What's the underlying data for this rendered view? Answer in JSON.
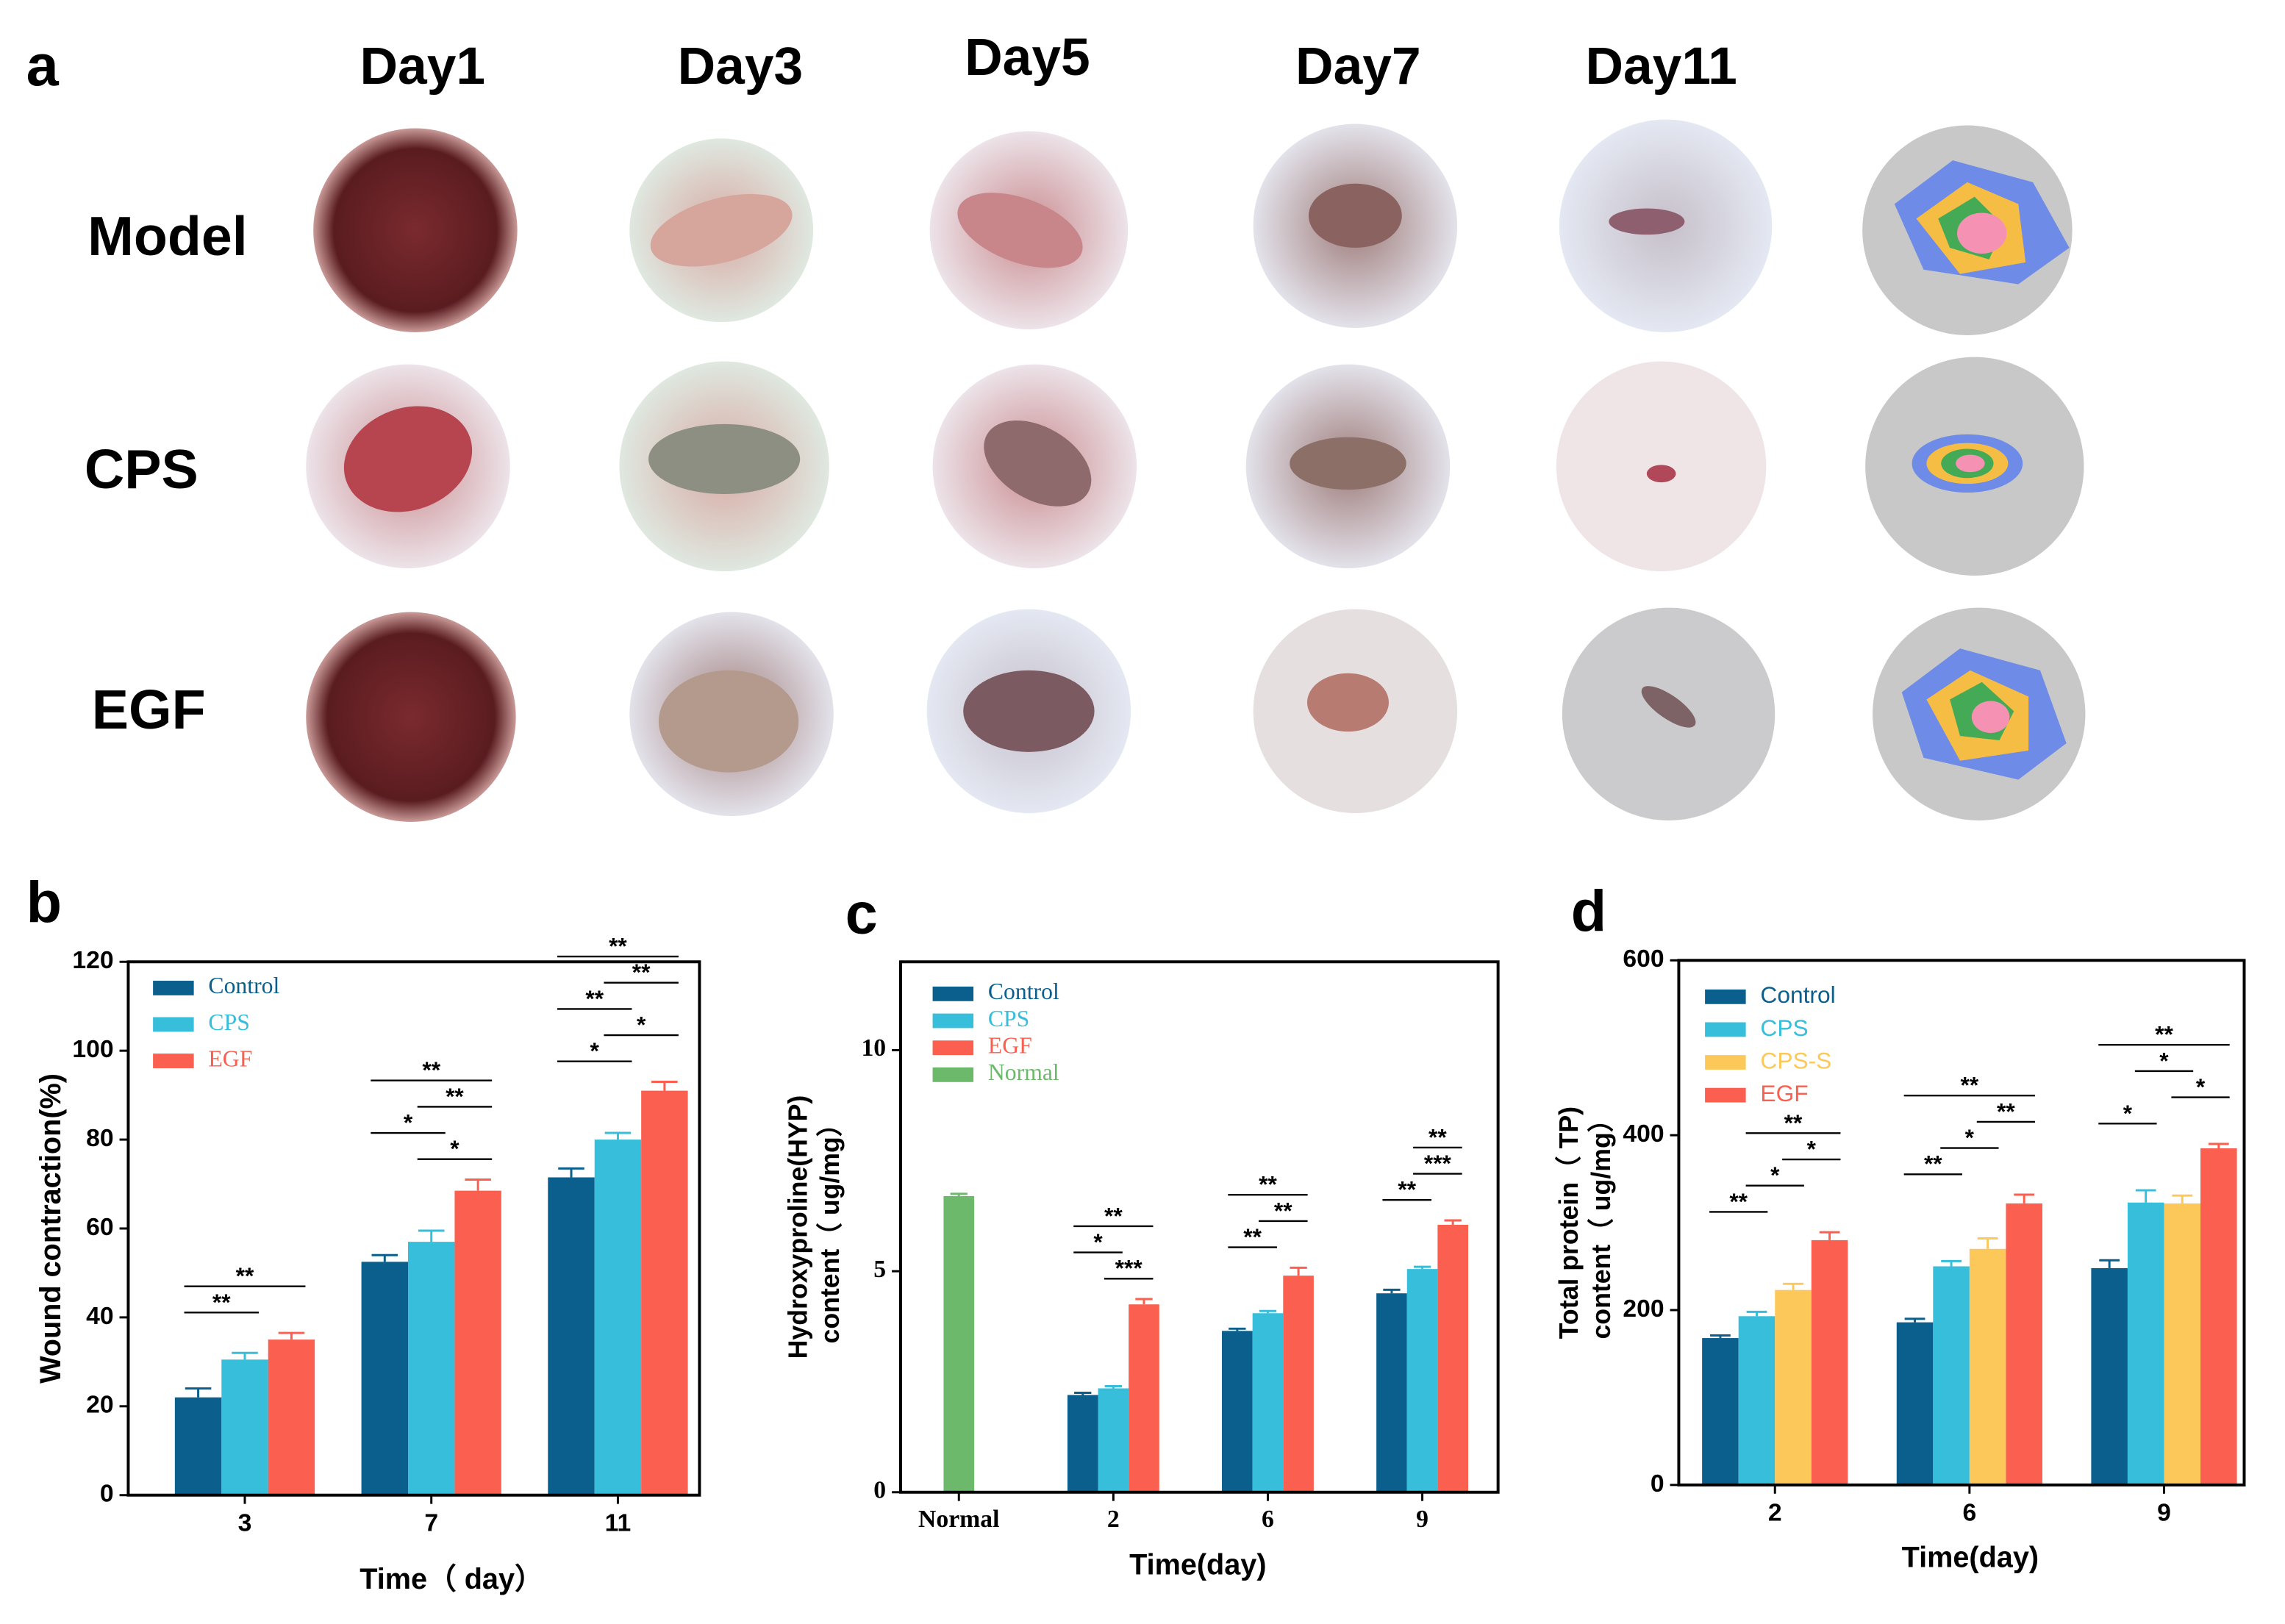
{
  "panel_a": {
    "letter": "a",
    "headers": [
      "Day1",
      "Day3",
      "Day5",
      "Day7",
      "Day11"
    ],
    "rows": [
      "Model",
      "CPS",
      "EGF"
    ]
  },
  "chart_data": [
    {
      "type": "bar",
      "letter": "b",
      "ylabel": "Wound contraction(%)",
      "xlabel": "Time（ day）",
      "categories": [
        "3",
        "7",
        "11"
      ],
      "ylim": [
        0,
        120
      ],
      "yticks": [
        0,
        20,
        40,
        60,
        80,
        100,
        120
      ],
      "series": [
        {
          "name": "Control",
          "color": "#0b5f8c",
          "values": [
            22,
            52.5,
            71.5
          ],
          "errors": [
            2,
            1.5,
            2
          ]
        },
        {
          "name": "CPS",
          "color": "#36bedb",
          "values": [
            30.5,
            57,
            80
          ],
          "errors": [
            1.5,
            2.5,
            1.5
          ]
        },
        {
          "name": "EGF",
          "color": "#fa5f4f",
          "values": [
            35,
            68.5,
            91
          ],
          "errors": [
            1.5,
            2.5,
            2
          ]
        }
      ],
      "annotations": [
        {
          "category": 0,
          "from": 0,
          "to": 1,
          "text": "**"
        },
        {
          "category": 0,
          "from": 0,
          "to": 2,
          "text": "**"
        },
        {
          "category": 1,
          "from": 1,
          "to": 2,
          "text": "*"
        },
        {
          "category": 1,
          "from": 0,
          "to": 1,
          "text": "*"
        },
        {
          "category": 1,
          "from": 1,
          "to": 2,
          "text": "**"
        },
        {
          "category": 1,
          "from": 0,
          "to": 2,
          "text": "**"
        },
        {
          "category": 2,
          "from": 0,
          "to": 1,
          "text": "*"
        },
        {
          "category": 2,
          "from": 1,
          "to": 2,
          "text": "*"
        },
        {
          "category": 2,
          "from": 0,
          "to": 1,
          "text": "**"
        },
        {
          "category": 2,
          "from": 1,
          "to": 2,
          "text": "**"
        },
        {
          "category": 2,
          "from": 0,
          "to": 2,
          "text": "**"
        }
      ]
    },
    {
      "type": "bar",
      "letter": "c",
      "ylabel": [
        "Hydroxyproline(HYP)",
        "content（ ug/mg）"
      ],
      "xlabel": "Time(day)",
      "categories": [
        "Normal",
        "2",
        "6",
        "9"
      ],
      "ylim": [
        0,
        12
      ],
      "yticks": [
        0,
        5,
        10
      ],
      "series": [
        {
          "name": "Control",
          "color": "#0b5f8c",
          "values": [
            null,
            2.2,
            3.65,
            4.5
          ],
          "errors": [
            null,
            0.05,
            0.05,
            0.08
          ]
        },
        {
          "name": "CPS",
          "color": "#36bedb",
          "values": [
            null,
            2.35,
            4.05,
            5.05
          ],
          "errors": [
            null,
            0.05,
            0.05,
            0.05
          ]
        },
        {
          "name": "EGF",
          "color": "#fa5f4f",
          "values": [
            null,
            4.25,
            4.9,
            6.05
          ],
          "errors": [
            null,
            0.12,
            0.18,
            0.1
          ]
        },
        {
          "name": "Normal",
          "color": "#6cb96c",
          "values": [
            6.7,
            null,
            null,
            null
          ],
          "errors": [
            0.05,
            null,
            null,
            null
          ]
        }
      ],
      "annotations": [
        {
          "category": 1,
          "from": 1,
          "to": 2,
          "text": "***"
        },
        {
          "category": 1,
          "from": 0,
          "to": 1,
          "text": "*"
        },
        {
          "category": 1,
          "from": 0,
          "to": 2,
          "text": "**"
        },
        {
          "category": 2,
          "from": 0,
          "to": 1,
          "text": "**"
        },
        {
          "category": 2,
          "from": 1,
          "to": 2,
          "text": "**"
        },
        {
          "category": 2,
          "from": 0,
          "to": 2,
          "text": "**"
        },
        {
          "category": 3,
          "from": 0,
          "to": 1,
          "text": "**"
        },
        {
          "category": 3,
          "from": 1,
          "to": 2,
          "text": "***"
        },
        {
          "category": 3,
          "from": 1,
          "to": 2,
          "text": "**"
        }
      ]
    },
    {
      "type": "bar",
      "letter": "d",
      "ylabel": [
        "Total protein（ TP)",
        "content（ ug/mg）"
      ],
      "xlabel": "Time(day)",
      "categories": [
        "2",
        "6",
        "9"
      ],
      "ylim": [
        0,
        600
      ],
      "yticks": [
        0,
        200,
        400,
        600
      ],
      "series": [
        {
          "name": "Control",
          "color": "#0b5f8c",
          "values": [
            168,
            186,
            248
          ],
          "errors": [
            3,
            4,
            9
          ]
        },
        {
          "name": "CPS",
          "color": "#36bedb",
          "values": [
            193,
            250,
            323
          ],
          "errors": [
            5,
            6,
            14
          ]
        },
        {
          "name": "CPS-S",
          "color": "#fdc85a",
          "values": [
            223,
            270,
            322
          ],
          "errors": [
            7,
            12,
            9
          ]
        },
        {
          "name": "EGF",
          "color": "#fa5f4f",
          "values": [
            280,
            322,
            385
          ],
          "errors": [
            9,
            10,
            5
          ]
        }
      ],
      "annotations": [
        {
          "category": 0,
          "from": 0,
          "to": 1,
          "text": "**"
        },
        {
          "category": 0,
          "from": 1,
          "to": 2,
          "text": "*"
        },
        {
          "category": 0,
          "from": 2,
          "to": 3,
          "text": "*"
        },
        {
          "category": 0,
          "from": 1,
          "to": 3,
          "text": "**"
        },
        {
          "category": 1,
          "from": 0,
          "to": 1,
          "text": "**"
        },
        {
          "category": 1,
          "from": 1,
          "to": 2,
          "text": "*"
        },
        {
          "category": 1,
          "from": 2,
          "to": 3,
          "text": "**"
        },
        {
          "category": 1,
          "from": 0,
          "to": 3,
          "text": "**"
        },
        {
          "category": 2,
          "from": 0,
          "to": 1,
          "text": "*"
        },
        {
          "category": 2,
          "from": 2,
          "to": 3,
          "text": "*"
        },
        {
          "category": 2,
          "from": 1,
          "to": 2,
          "text": "*"
        },
        {
          "category": 2,
          "from": 0,
          "to": 3,
          "text": "**"
        }
      ]
    }
  ]
}
